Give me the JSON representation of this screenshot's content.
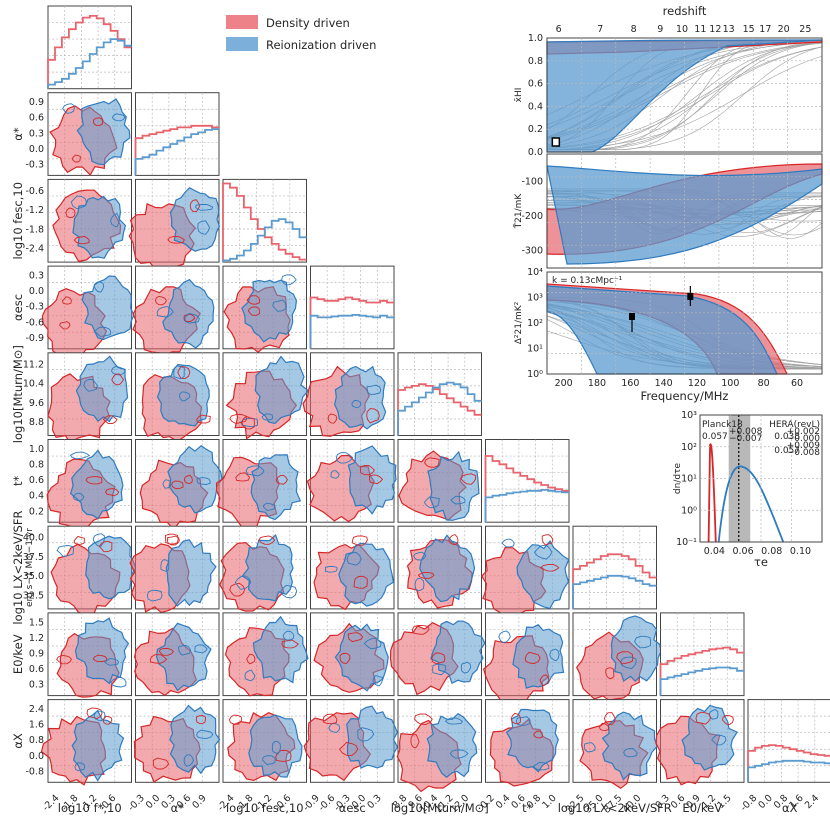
{
  "chart_data": {
    "type": "corner-plot",
    "legend": {
      "position": "top-center",
      "items": [
        {
          "label": "Density driven",
          "color": "#e8646c"
        },
        {
          "label": "Reionization driven",
          "color": "#5b9bd0"
        }
      ]
    },
    "colors": {
      "density": "#e8646c",
      "reion": "#5b9bd0",
      "density_line": "#d62728",
      "reion_line": "#2f7bbf",
      "grey": "#a0a0a0"
    },
    "parameters": [
      {
        "id": "fstar",
        "label": "log10 f*,10",
        "range": [
          -2.8,
          0.0
        ],
        "ticks": [
          "-2.4",
          "-1.8",
          "-1.2",
          "-0.6"
        ],
        "hist_density": [
          0.35,
          0.5,
          0.62,
          0.72,
          0.8,
          0.86,
          0.88,
          0.85,
          0.78,
          0.7,
          0.6,
          0.5
        ],
        "hist_reion": [
          0.05,
          0.08,
          0.12,
          0.18,
          0.25,
          0.33,
          0.42,
          0.5,
          0.56,
          0.6,
          0.58,
          0.52
        ]
      },
      {
        "id": "alphastar",
        "label": "α*",
        "range": [
          -0.5,
          1.0
        ],
        "ticks": [
          "-0.3",
          "0.0",
          "0.3",
          "0.6",
          "0.9"
        ],
        "hist_density": [
          0.45,
          0.48,
          0.5,
          0.52,
          0.54,
          0.56,
          0.58,
          0.58,
          0.6,
          0.6,
          0.6,
          0.58
        ],
        "hist_reion": [
          0.2,
          0.22,
          0.25,
          0.3,
          0.34,
          0.38,
          0.42,
          0.46,
          0.5,
          0.52,
          0.55,
          0.56
        ]
      },
      {
        "id": "fesc",
        "label": "log10 fesc,10",
        "range": [
          -3.0,
          0.0
        ],
        "ticks": [
          "-2.4",
          "-1.8",
          "-1.2",
          "-0.6"
        ],
        "hist_density": [
          0.95,
          0.9,
          0.8,
          0.66,
          0.52,
          0.4,
          0.3,
          0.22,
          0.15,
          0.1,
          0.06,
          0.03
        ],
        "hist_reion": [
          0.02,
          0.04,
          0.08,
          0.14,
          0.22,
          0.32,
          0.42,
          0.5,
          0.52,
          0.48,
          0.4,
          0.3
        ]
      },
      {
        "id": "alphaesc",
        "label": "αesc",
        "range": [
          -1.0,
          0.5
        ],
        "ticks": [
          "-0.9",
          "-0.6",
          "-0.3",
          "0.0",
          "0.3"
        ],
        "hist_density": [
          0.62,
          0.6,
          0.58,
          0.58,
          0.6,
          0.62,
          0.6,
          0.58,
          0.56,
          0.56,
          0.58,
          0.56
        ],
        "hist_reion": [
          0.4,
          0.38,
          0.38,
          0.39,
          0.4,
          0.4,
          0.41,
          0.4,
          0.39,
          0.38,
          0.4,
          0.38
        ]
      },
      {
        "id": "mturn",
        "label": "log10[Mturn/M⊙]",
        "range": [
          8.0,
          12.0
        ],
        "ticks": [
          "8.8",
          "9.6",
          "10.4",
          "11.2",
          "12.0"
        ],
        "hist_density": [
          0.55,
          0.58,
          0.6,
          0.62,
          0.6,
          0.56,
          0.5,
          0.45,
          0.4,
          0.35,
          0.3,
          0.25
        ],
        "hist_reion": [
          0.3,
          0.35,
          0.4,
          0.46,
          0.52,
          0.58,
          0.62,
          0.64,
          0.62,
          0.58,
          0.5,
          0.42
        ]
      },
      {
        "id": "tstar",
        "label": "t*",
        "range": [
          0.0,
          1.0
        ],
        "ticks": [
          "0.2",
          "0.4",
          "0.6",
          "0.8",
          "1.0"
        ],
        "hist_density": [
          0.8,
          0.74,
          0.7,
          0.65,
          0.6,
          0.56,
          0.52,
          0.48,
          0.45,
          0.42,
          0.4,
          0.38
        ],
        "hist_reion": [
          0.3,
          0.32,
          0.33,
          0.35,
          0.36,
          0.37,
          0.38,
          0.38,
          0.39,
          0.38,
          0.37,
          0.36
        ]
      },
      {
        "id": "lx",
        "label": "log10 LX<2keV/SFR",
        "range": [
          30.0,
          42.0
        ],
        "ticks": [
          "32.5",
          "35.0",
          "37.5",
          "40.0"
        ],
        "hist_density": [
          0.48,
          0.52,
          0.56,
          0.6,
          0.64,
          0.66,
          0.66,
          0.64,
          0.6,
          0.52,
          0.44,
          0.38
        ],
        "hist_reion": [
          0.3,
          0.32,
          0.34,
          0.36,
          0.38,
          0.4,
          0.4,
          0.39,
          0.37,
          0.34,
          0.3,
          0.28
        ]
      },
      {
        "id": "e0",
        "label": "E0/keV",
        "range": [
          0.0,
          1.5
        ],
        "ticks": [
          "0.3",
          "0.6",
          "0.9",
          "1.2",
          "1.5"
        ],
        "hist_density": [
          0.38,
          0.42,
          0.45,
          0.48,
          0.5,
          0.52,
          0.54,
          0.56,
          0.57,
          0.58,
          0.56,
          0.52
        ],
        "hist_reion": [
          0.2,
          0.22,
          0.24,
          0.26,
          0.28,
          0.3,
          0.32,
          0.33,
          0.34,
          0.34,
          0.33,
          0.3
        ]
      },
      {
        "id": "alphax",
        "label": "αX",
        "range": [
          -1.0,
          3.0
        ],
        "ticks": [
          "-0.8",
          "0.0",
          "0.8",
          "1.6",
          "2.4"
        ],
        "hist_density": [
          0.38,
          0.42,
          0.44,
          0.45,
          0.44,
          0.42,
          0.4,
          0.38,
          0.36,
          0.34,
          0.33,
          0.32
        ],
        "hist_reion": [
          0.18,
          0.2,
          0.22,
          0.24,
          0.25,
          0.26,
          0.26,
          0.26,
          0.25,
          0.24,
          0.24,
          0.23
        ]
      }
    ],
    "ylabels": [
      "α*",
      "log10 fesc,10",
      "αesc",
      "log10[Mturn/M⊙]",
      "t*",
      "log10 LX<2keV/SFR",
      "E0/keV",
      "αX"
    ],
    "ylabel_sub_lx": "erg s−1 M⊙−1 yr",
    "yticks": {
      "alphastar": [
        "0.9",
        "0.6",
        "0.3",
        "0.0",
        "-0.3"
      ],
      "fesc": [
        "-0.6",
        "-1.2",
        "-1.8",
        "-2.4"
      ],
      "alphaesc": [
        "0.3",
        "0.0",
        "-0.3",
        "-0.6",
        "-0.9"
      ],
      "mturn": [
        "11.2",
        "10.4",
        "9.6",
        "8.8"
      ],
      "tstar": [
        "1.0",
        "0.8",
        "0.6",
        "0.4",
        "0.2"
      ],
      "lx": [
        "40.0",
        "37.5",
        "35.0",
        "32.5"
      ],
      "e0": [
        "1.5",
        "1.2",
        "0.9",
        "0.6",
        "0.3"
      ],
      "alphax": [
        "2.4",
        "1.6",
        "0.8",
        "0.0",
        "-0.8"
      ]
    },
    "history_panels": {
      "xlabel": "Frequency/MHz",
      "freq_range": [
        210,
        45
      ],
      "freq_ticks": [
        "200",
        "180",
        "160",
        "140",
        "120",
        "100",
        "80",
        "60"
      ],
      "top_axis_label": "redshift",
      "z_ticks": [
        "6",
        "7",
        "8",
        "9",
        "10",
        "11",
        "12",
        "13",
        "15",
        "17",
        "20",
        "25"
      ],
      "xhi": {
        "ylabel": "x̄HI",
        "yticks": [
          "1.0",
          "0.8",
          "0.6",
          "0.4",
          "0.2",
          "0.0"
        ]
      },
      "t21": {
        "ylabel": "T̄21/mK",
        "yticks": [
          "-100",
          "-200",
          "-300"
        ]
      },
      "ps": {
        "ylabel": "Δ²21/mK²",
        "yticks": [
          "10⁴",
          "10³",
          "10²",
          "10¹",
          "10⁰"
        ],
        "annotation": "k = 0.13cMpc⁻¹"
      }
    },
    "tau_panel": {
      "xlabel": "τe",
      "ylabel": "dn/dτe",
      "xticks": [
        "0.04",
        "0.06",
        "0.08",
        "0.10"
      ],
      "yticks": [
        "10³",
        "10²",
        "10¹",
        "10⁰",
        "10⁻¹"
      ],
      "planck_label": "Planck18",
      "planck_value": "0.057",
      "planck_err": [
        "+0.008",
        "−0.007"
      ],
      "hera_label": "HERA(revL)",
      "hera_density_value": "0.038",
      "hera_density_err": [
        "+0.002",
        "−0.000"
      ],
      "hera_reion_value": "0.057",
      "hera_reion_err": [
        "+0.009",
        "−0.008"
      ]
    }
  }
}
